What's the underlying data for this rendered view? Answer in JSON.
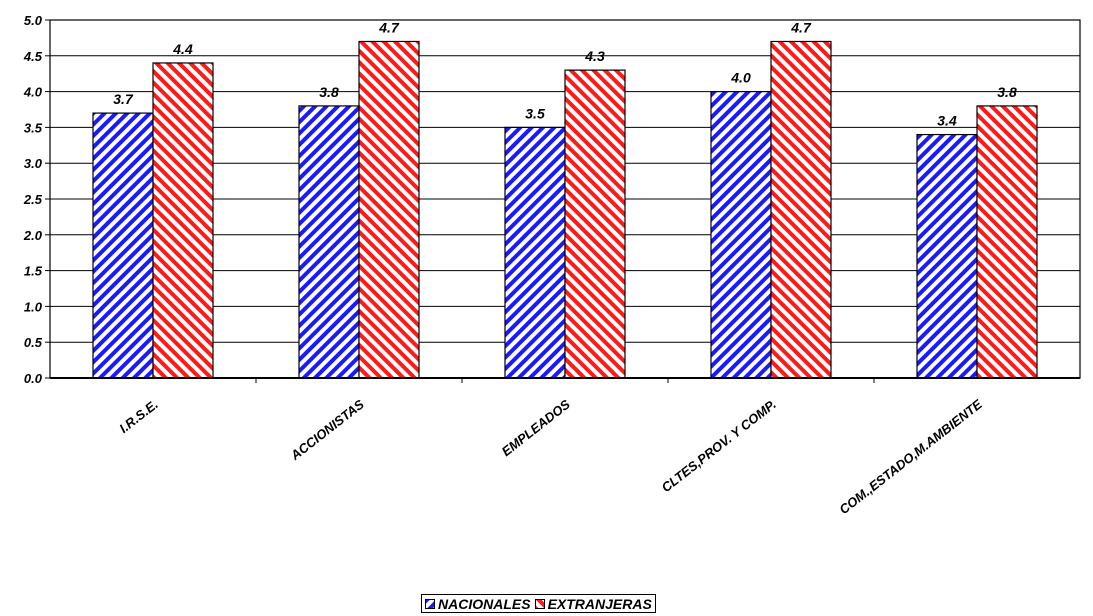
{
  "chart_data": {
    "type": "bar",
    "categories": [
      "I.R.S.E.",
      "ACCIONISTAS",
      "EMPLEADOS",
      "CLTES,PROV. Y COMP.",
      "COM.,ESTADO,M.AMBIENTE"
    ],
    "series": [
      {
        "name": "NACIONALES",
        "values": [
          3.7,
          3.8,
          3.5,
          4.0,
          3.4
        ],
        "labels": [
          "3.7",
          "3.8",
          "3.5",
          "4.0",
          "3.4"
        ],
        "color": "#1a1aff",
        "pattern": "diagonal-down"
      },
      {
        "name": "EXTRANJERAS",
        "values": [
          4.4,
          4.7,
          4.3,
          4.7,
          3.8
        ],
        "labels": [
          "4.4",
          "4.7",
          "4.3",
          "4.7",
          "3.8"
        ],
        "color": "#ff1a1a",
        "pattern": "diagonal-up"
      }
    ],
    "yticks": [
      "0.0",
      "0.5",
      "1.0",
      "1.5",
      "2.0",
      "2.5",
      "3.0",
      "3.5",
      "4.0",
      "4.5",
      "5.0"
    ],
    "ylim": [
      0,
      5
    ],
    "grid": true,
    "legend_position": "bottom"
  }
}
